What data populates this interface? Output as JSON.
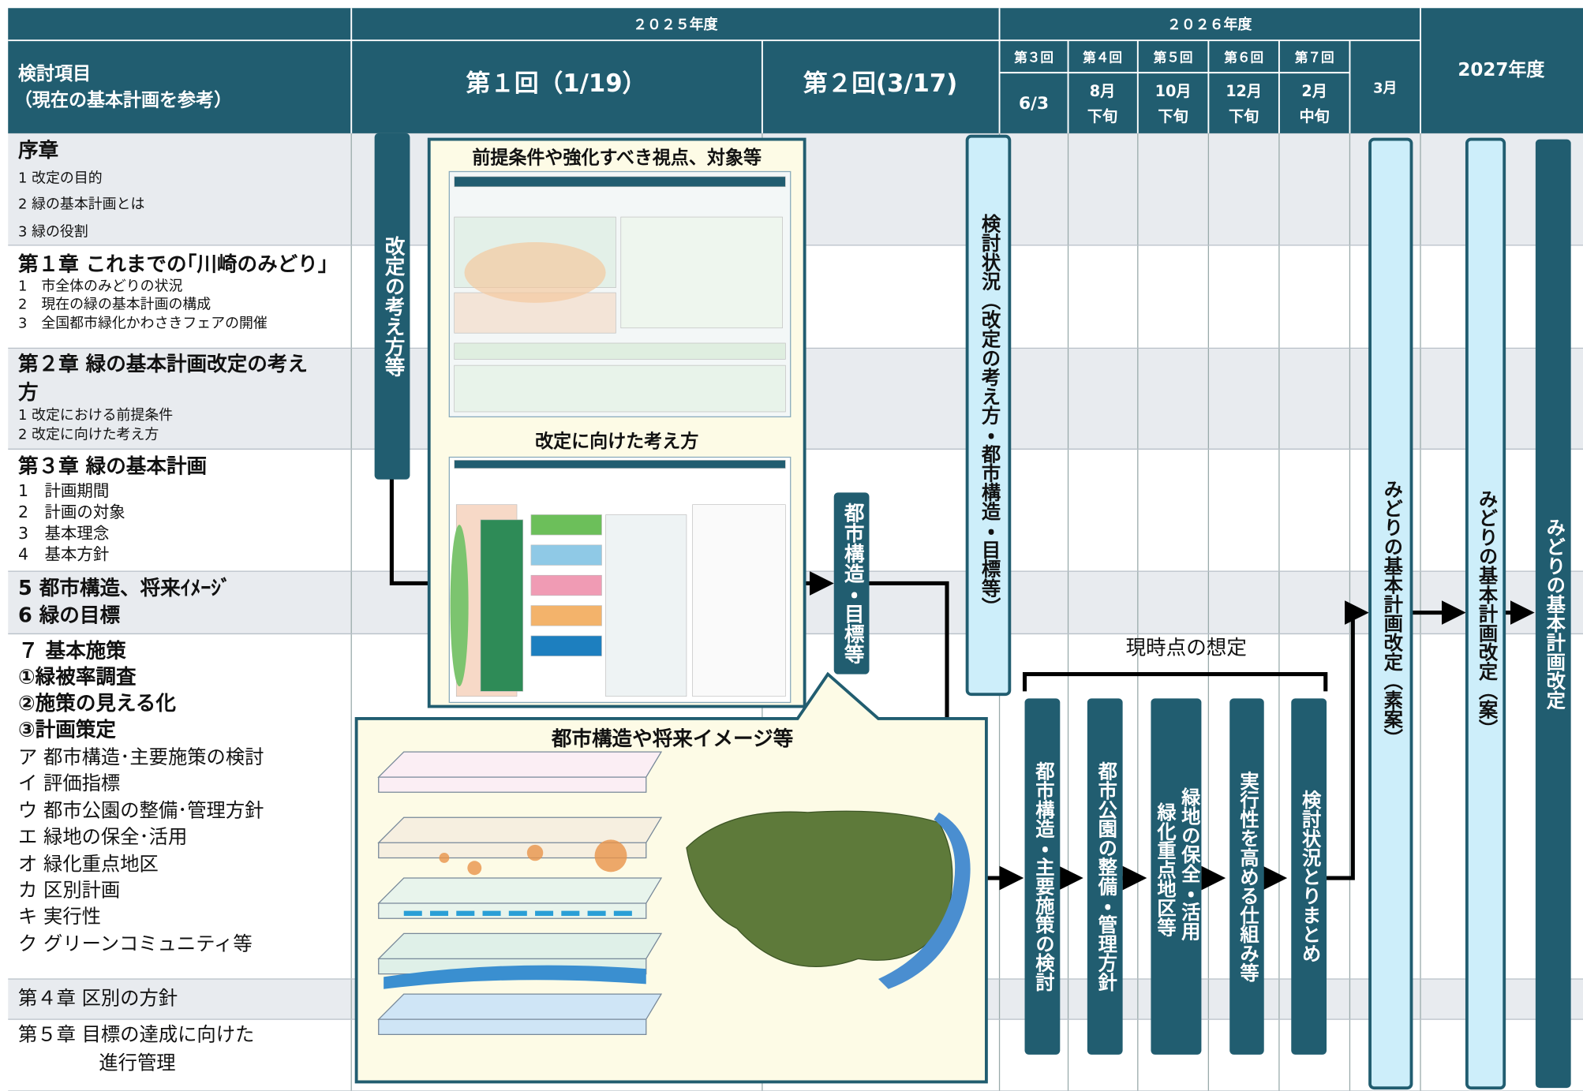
{
  "header": {
    "year_2025": "２０２５年度",
    "year_2026": "２０２６年度",
    "year_2027": "2027年度",
    "item_title": "検討項目",
    "item_subtitle": "（現在の基本計画を参考）",
    "meeting_1": "第１回（1/19）",
    "meeting_2": "第２回(3/17)",
    "meetings_2026": [
      {
        "round": "第３回",
        "date": [
          "6/3"
        ]
      },
      {
        "round": "第４回",
        "date": [
          "8月",
          "下旬"
        ]
      },
      {
        "round": "第５回",
        "date": [
          "10月",
          "下旬"
        ]
      },
      {
        "round": "第６回",
        "date": [
          "12月",
          "下旬"
        ]
      },
      {
        "round": "第７回",
        "date": [
          "2月",
          "中旬"
        ]
      }
    ],
    "march": "3月"
  },
  "rows": [
    {
      "title": [
        "序章"
      ],
      "items": [
        "1 改定の目的",
        "2 緑の基本計画とは",
        "3 緑の役割"
      ]
    },
    {
      "title": [
        "第１章 これまでの｢川崎のみどり｣"
      ],
      "items": [
        "1　市全体のみどりの状況",
        "2　現在の緑の基本計画の構成",
        "3　全国都市緑化かわさきフェアの開催"
      ]
    },
    {
      "title": [
        "第２章 緑の基本計画改定の考え",
        "方"
      ],
      "items": [
        "1 改定における前提条件",
        "2 改定に向けた考え方"
      ]
    },
    {
      "title": [
        "第３章 緑の基本計画"
      ],
      "items": [
        "1　計画期間",
        "2　計画の対象",
        "3　基本理念",
        "4　基本方針"
      ]
    },
    {
      "title": [
        "5 都市構造、将来ｲﾒｰｼﾞ",
        "6 緑の目標"
      ],
      "items": []
    },
    {
      "title": [
        "７ 基本施策",
        "①緑被率調査",
        "②施策の見える化",
        "③計画策定"
      ],
      "items": [
        "ア 都市構造･主要施策の検討",
        "イ 評価指標",
        "ウ 都市公園の整備･管理方針",
        "エ 緑地の保全･活用",
        "オ 緑化重点地区",
        "カ 区別計画",
        "キ 実行性",
        "ク グリーンコミュニティ等"
      ]
    },
    {
      "title": [
        "第４章 区別の方針"
      ],
      "items": []
    },
    {
      "title": [
        "第５章 目標の達成に向けた",
        "進行管理"
      ],
      "items": []
    }
  ],
  "boxes": {
    "kaitei": "改定の考え方等",
    "kento": "検討状況（改定の考え方・都市構造・目標等）",
    "toshi": "都市構造・目標等",
    "plans": [
      [
        "都市構造・主要施策の検討"
      ],
      [
        "都市公園の整備・管理方針"
      ],
      [
        "緑地の保全・活用",
        "緑化重点地区等"
      ],
      [
        "実行性を高める仕組み等"
      ],
      [
        "検討状況とりまとめ"
      ]
    ],
    "soan": "みどりの基本計画改定（素案）",
    "an": "みどりの基本計画改定（案）",
    "final": "みどりの基本計画改定"
  },
  "figures": {
    "premise": "前提条件や強化すべき視点、対象等",
    "approach": "改定に向けた考え方",
    "structure": "都市構造や将来イメージ等"
  },
  "assumption": "現時点の想定"
}
